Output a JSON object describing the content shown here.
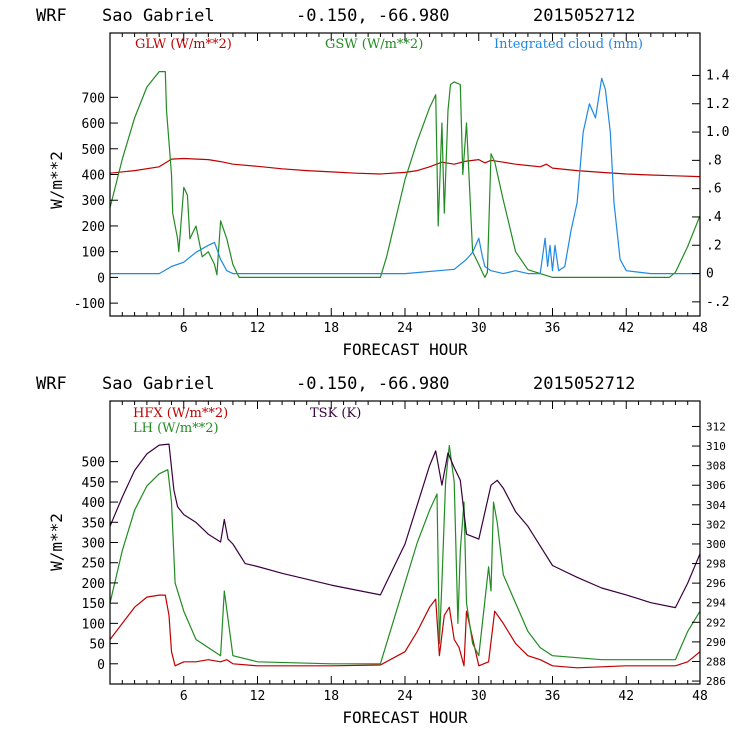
{
  "header": {
    "model": "WRF",
    "location": "Sao Gabriel",
    "coords": "-0.150, -66.980",
    "run": "2015052712"
  },
  "colors": {
    "red": "#c00000",
    "green": "#228b22",
    "blue": "#1e88e5",
    "purple": "#3a0040",
    "axis": "#000000"
  },
  "chart_data": [
    {
      "type": "line",
      "title": "WRF Sao Gabriel -0.150, -66.980 2015052712",
      "xlabel": "FORECAST HOUR",
      "ylabel": "W/m**2",
      "xlim": [
        0,
        48
      ],
      "ylim": [
        -150,
        950
      ],
      "y2lim": [
        -0.3,
        1.7
      ],
      "x_ticks": [
        6,
        12,
        18,
        24,
        30,
        36,
        42,
        48
      ],
      "y_ticks": [
        -100,
        0,
        100,
        200,
        300,
        400,
        500,
        600,
        700
      ],
      "y2_ticks": [
        -0.2,
        0,
        0.2,
        0.4,
        0.6,
        0.8,
        1.0,
        1.2,
        1.4
      ],
      "y2_tick_labels": [
        "-.2",
        "0",
        ".2",
        ".4",
        ".6",
        ".8",
        "1.0",
        "1.2",
        "1.4"
      ],
      "series": [
        {
          "name": "GLW (W/m**2)",
          "color": "#c00000",
          "axis": "left",
          "x": [
            0,
            2,
            4,
            5,
            6,
            8,
            9,
            10,
            12,
            14,
            16,
            18,
            20,
            22,
            24,
            25,
            26,
            27,
            28,
            29,
            30,
            30.5,
            31,
            32,
            33,
            34,
            35,
            35.5,
            36,
            38,
            40,
            42,
            44,
            46,
            48
          ],
          "values": [
            405,
            415,
            430,
            460,
            462,
            458,
            450,
            440,
            432,
            422,
            415,
            410,
            405,
            402,
            408,
            415,
            430,
            448,
            440,
            452,
            458,
            445,
            455,
            448,
            440,
            435,
            430,
            440,
            425,
            415,
            408,
            402,
            398,
            395,
            392
          ]
        },
        {
          "name": "GSW (W/m**2)",
          "color": "#228b22",
          "axis": "left",
          "x": [
            0,
            1,
            2,
            3,
            4,
            4.5,
            4.6,
            5,
            5.1,
            5.5,
            5.6,
            6,
            6.3,
            6.5,
            7,
            7.5,
            8,
            8.5,
            8.7,
            9,
            9.5,
            10,
            10.5,
            12,
            18,
            22,
            22.5,
            24,
            25,
            26,
            26.5,
            26.7,
            27,
            27.2,
            27.5,
            27.7,
            28,
            28.5,
            28.7,
            29,
            29.5,
            30,
            30.3,
            30.5,
            30.7,
            31,
            31.3,
            32,
            32.5,
            33,
            34,
            36,
            40,
            45.5,
            46,
            47,
            48
          ],
          "values": [
            270,
            460,
            620,
            740,
            800,
            800,
            650,
            400,
            250,
            150,
            100,
            350,
            320,
            150,
            200,
            80,
            100,
            50,
            10,
            220,
            150,
            50,
            0,
            0,
            0,
            0,
            80,
            380,
            530,
            660,
            710,
            200,
            600,
            250,
            650,
            750,
            760,
            750,
            400,
            600,
            100,
            50,
            20,
            0,
            20,
            480,
            450,
            300,
            200,
            100,
            30,
            0,
            0,
            0,
            20,
            120,
            240
          ]
        },
        {
          "name": "Integrated cloud (mm)",
          "color": "#1e88e5",
          "axis": "right",
          "x": [
            0,
            4,
            5,
            6,
            7,
            8,
            8.5,
            9,
            9.5,
            10,
            12,
            18,
            24,
            28,
            29,
            29.5,
            30,
            30.3,
            30.5,
            31,
            32,
            33,
            34,
            35,
            35.4,
            35.6,
            35.8,
            36,
            36.2,
            36.5,
            37,
            37.5,
            38,
            38.5,
            39,
            39.5,
            40,
            40.3,
            40.7,
            41,
            41.5,
            42,
            44,
            46,
            48
          ],
          "values": [
            0,
            0,
            0.05,
            0.08,
            0.15,
            0.2,
            0.22,
            0.1,
            0.02,
            0,
            0,
            0,
            0,
            0.03,
            0.1,
            0.15,
            0.25,
            0.12,
            0.05,
            0.02,
            0,
            0.02,
            0,
            0,
            0.25,
            0.05,
            0.2,
            0.02,
            0.2,
            0.02,
            0.05,
            0.3,
            0.5,
            1.0,
            1.2,
            1.1,
            1.38,
            1.3,
            1.0,
            0.5,
            0.1,
            0.02,
            0,
            0,
            0
          ]
        }
      ]
    },
    {
      "type": "line",
      "title": "WRF Sao Gabriel -0.150, -66.980 2015052712",
      "xlabel": "FORECAST HOUR",
      "ylabel": "W/m**2",
      "xlim": [
        0,
        48
      ],
      "ylim": [
        -50,
        650
      ],
      "y2lim": [
        285.7,
        314.6
      ],
      "x_ticks": [
        6,
        12,
        18,
        24,
        30,
        36,
        42,
        48
      ],
      "y_ticks": [
        0,
        50,
        100,
        150,
        200,
        250,
        300,
        350,
        400,
        450,
        500
      ],
      "y2_ticks": [
        286,
        288,
        290,
        292,
        294,
        296,
        298,
        300,
        302,
        304,
        306,
        308,
        310,
        312
      ],
      "series": [
        {
          "name": "HFX (W/m**2)",
          "color": "#c00000",
          "axis": "left",
          "x": [
            0,
            1,
            2,
            3,
            4,
            4.5,
            4.8,
            5,
            5.3,
            6,
            7,
            8,
            9,
            9.5,
            10,
            12,
            18,
            22,
            24,
            25,
            26,
            26.5,
            26.8,
            27.2,
            27.6,
            28,
            28.4,
            28.8,
            29,
            30,
            30.8,
            31.3,
            32,
            33,
            34,
            35,
            36,
            38,
            42,
            46,
            47,
            48
          ],
          "values": [
            60,
            100,
            140,
            165,
            170,
            170,
            120,
            30,
            -5,
            5,
            5,
            10,
            5,
            10,
            0,
            -5,
            -5,
            -3,
            30,
            80,
            140,
            160,
            20,
            120,
            140,
            60,
            40,
            -5,
            130,
            -5,
            5,
            130,
            100,
            50,
            20,
            10,
            -5,
            -10,
            -5,
            -5,
            5,
            30
          ]
        },
        {
          "name": "LH (W/m**2)",
          "color": "#228b22",
          "axis": "left",
          "x": [
            0,
            1,
            2,
            3,
            4,
            4.7,
            5,
            5.3,
            6,
            7,
            8,
            9,
            9.3,
            10,
            12,
            18,
            22,
            24,
            25,
            26,
            26.6,
            26.8,
            27,
            27.3,
            27.6,
            28,
            28.3,
            28.5,
            28.8,
            29,
            29.5,
            30,
            30.8,
            31,
            31.2,
            31.5,
            32,
            33,
            34,
            35,
            36,
            40,
            46,
            47,
            48
          ],
          "values": [
            150,
            280,
            380,
            440,
            470,
            480,
            400,
            200,
            130,
            60,
            40,
            20,
            180,
            20,
            5,
            0,
            0,
            200,
            300,
            380,
            420,
            50,
            200,
            450,
            540,
            450,
            100,
            280,
            400,
            150,
            50,
            20,
            240,
            180,
            400,
            350,
            220,
            150,
            80,
            40,
            20,
            10,
            10,
            80,
            130
          ]
        },
        {
          "name": "TSK (K)",
          "color": "#3a0040",
          "axis": "right",
          "x": [
            0,
            1,
            2,
            3,
            4,
            4.8,
            5.2,
            5.5,
            6,
            7,
            8,
            9,
            9.3,
            9.6,
            10,
            11,
            12,
            14,
            16,
            18,
            20,
            22,
            24,
            25,
            26,
            26.5,
            27,
            27.5,
            28,
            28.5,
            29,
            30,
            31,
            31.5,
            32,
            33,
            34,
            35,
            36,
            38,
            40,
            42,
            44,
            46,
            47,
            48
          ],
          "values": [
            301.8,
            304.8,
            307.5,
            309.2,
            310.1,
            310.2,
            305.5,
            303.8,
            303,
            302.2,
            301,
            300.2,
            302.5,
            300.5,
            300,
            298,
            297.7,
            297,
            296.4,
            295.8,
            295.3,
            294.8,
            300,
            304,
            308,
            309.5,
            306,
            309.3,
            307.8,
            306.5,
            301,
            300.5,
            306,
            306.5,
            305.7,
            303.3,
            301.8,
            299.8,
            297.8,
            296.6,
            295.5,
            294.8,
            294,
            293.5,
            296,
            299
          ]
        }
      ]
    }
  ]
}
